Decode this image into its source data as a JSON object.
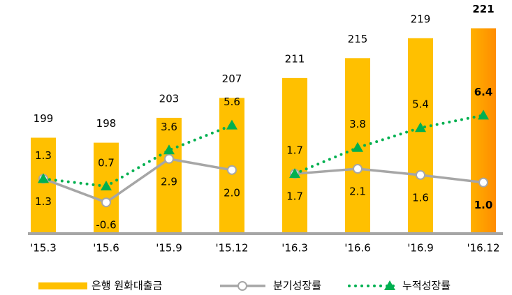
{
  "chart_data": {
    "type": "bar",
    "categories": [
      "'15.3",
      "'15.6",
      "'15.9",
      "'15.12",
      "'16.3",
      "'16.6",
      "'16.9",
      "'16.12"
    ],
    "ylim": [
      180,
      225
    ],
    "y2lim": [
      -3,
      15
    ],
    "legend": "bottom",
    "series": [
      {
        "name": "은행 원화대출금",
        "type": "bar",
        "colors": [
          "#FFC000",
          "#FFC000",
          "#FFC000",
          "#FFC000",
          "#FFC000",
          "#FFC000",
          "#FFC000",
          "#FF9300"
        ],
        "values": [
          199,
          198,
          203,
          207,
          211,
          215,
          219,
          221
        ]
      },
      {
        "name": "분기성장률",
        "type": "line",
        "axis": "y2",
        "color": "#A6A6A6",
        "values": [
          1.3,
          -0.6,
          2.9,
          2.0,
          1.7,
          2.1,
          1.6,
          1.0
        ],
        "value_labels": [
          "1.3",
          "-0.6",
          "2.9",
          "2.0",
          "1.7",
          "2.1",
          "1.6",
          "1.0"
        ]
      },
      {
        "name": "누적성장률",
        "type": "line",
        "axis": "y2",
        "color": "#00B050",
        "values": [
          1.3,
          0.7,
          3.6,
          5.6,
          1.7,
          3.8,
          5.4,
          6.4
        ],
        "value_labels": [
          "1.3",
          "0.7",
          "3.6",
          "5.6",
          "1.7",
          "3.8",
          "5.4",
          "6.4"
        ]
      }
    ]
  }
}
